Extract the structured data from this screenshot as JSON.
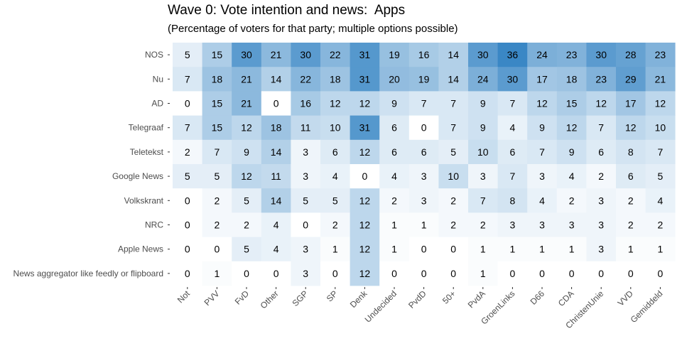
{
  "chart_data": {
    "type": "heatmap",
    "title": "Wave 0: Vote intention and news:  Apps",
    "subtitle": "(Percentage of voters for that party; multiple options possible)",
    "rows": [
      "NOS",
      "Nu",
      "AD",
      "Telegraaf",
      "Teletekst",
      "Google News",
      "Volkskrant",
      "NRC",
      "Apple News",
      "News aggregator like feedly or flipboard"
    ],
    "columns": [
      "Not",
      "PVV",
      "FvD",
      "Other",
      "SGP",
      "SP",
      "Denk",
      "Undecided",
      "PvdD",
      "50+",
      "PvdA",
      "GroenLinks",
      "D66",
      "CDA",
      "ChristenUnie",
      "VVD",
      "Gemiddeld"
    ],
    "values": [
      [
        5,
        15,
        30,
        21,
        30,
        22,
        31,
        19,
        16,
        14,
        30,
        36,
        24,
        23,
        30,
        28,
        23
      ],
      [
        7,
        18,
        21,
        14,
        22,
        18,
        31,
        20,
        19,
        14,
        24,
        30,
        17,
        18,
        23,
        29,
        21
      ],
      [
        0,
        15,
        21,
        0,
        16,
        12,
        12,
        9,
        7,
        7,
        9,
        7,
        12,
        15,
        12,
        17,
        12
      ],
      [
        7,
        15,
        12,
        18,
        11,
        10,
        31,
        6,
        0,
        7,
        9,
        4,
        9,
        12,
        7,
        12,
        10
      ],
      [
        2,
        7,
        9,
        14,
        3,
        6,
        12,
        6,
        6,
        5,
        10,
        6,
        7,
        9,
        6,
        8,
        7
      ],
      [
        5,
        5,
        12,
        11,
        3,
        4,
        0,
        4,
        3,
        10,
        3,
        7,
        3,
        4,
        2,
        6,
        5
      ],
      [
        0,
        2,
        5,
        14,
        5,
        5,
        12,
        2,
        3,
        2,
        7,
        8,
        4,
        2,
        3,
        2,
        4
      ],
      [
        0,
        2,
        2,
        4,
        0,
        2,
        12,
        1,
        1,
        2,
        2,
        3,
        3,
        3,
        3,
        2,
        2
      ],
      [
        0,
        0,
        5,
        4,
        3,
        1,
        12,
        1,
        0,
        0,
        1,
        1,
        1,
        1,
        3,
        1,
        1
      ],
      [
        0,
        1,
        0,
        0,
        3,
        0,
        12,
        0,
        0,
        0,
        1,
        0,
        0,
        0,
        0,
        0,
        0
      ]
    ],
    "color_low": "#ffffff",
    "color_high": "#3a87c5",
    "value_range": [
      0,
      36
    ],
    "legend": "none",
    "grid": false
  }
}
